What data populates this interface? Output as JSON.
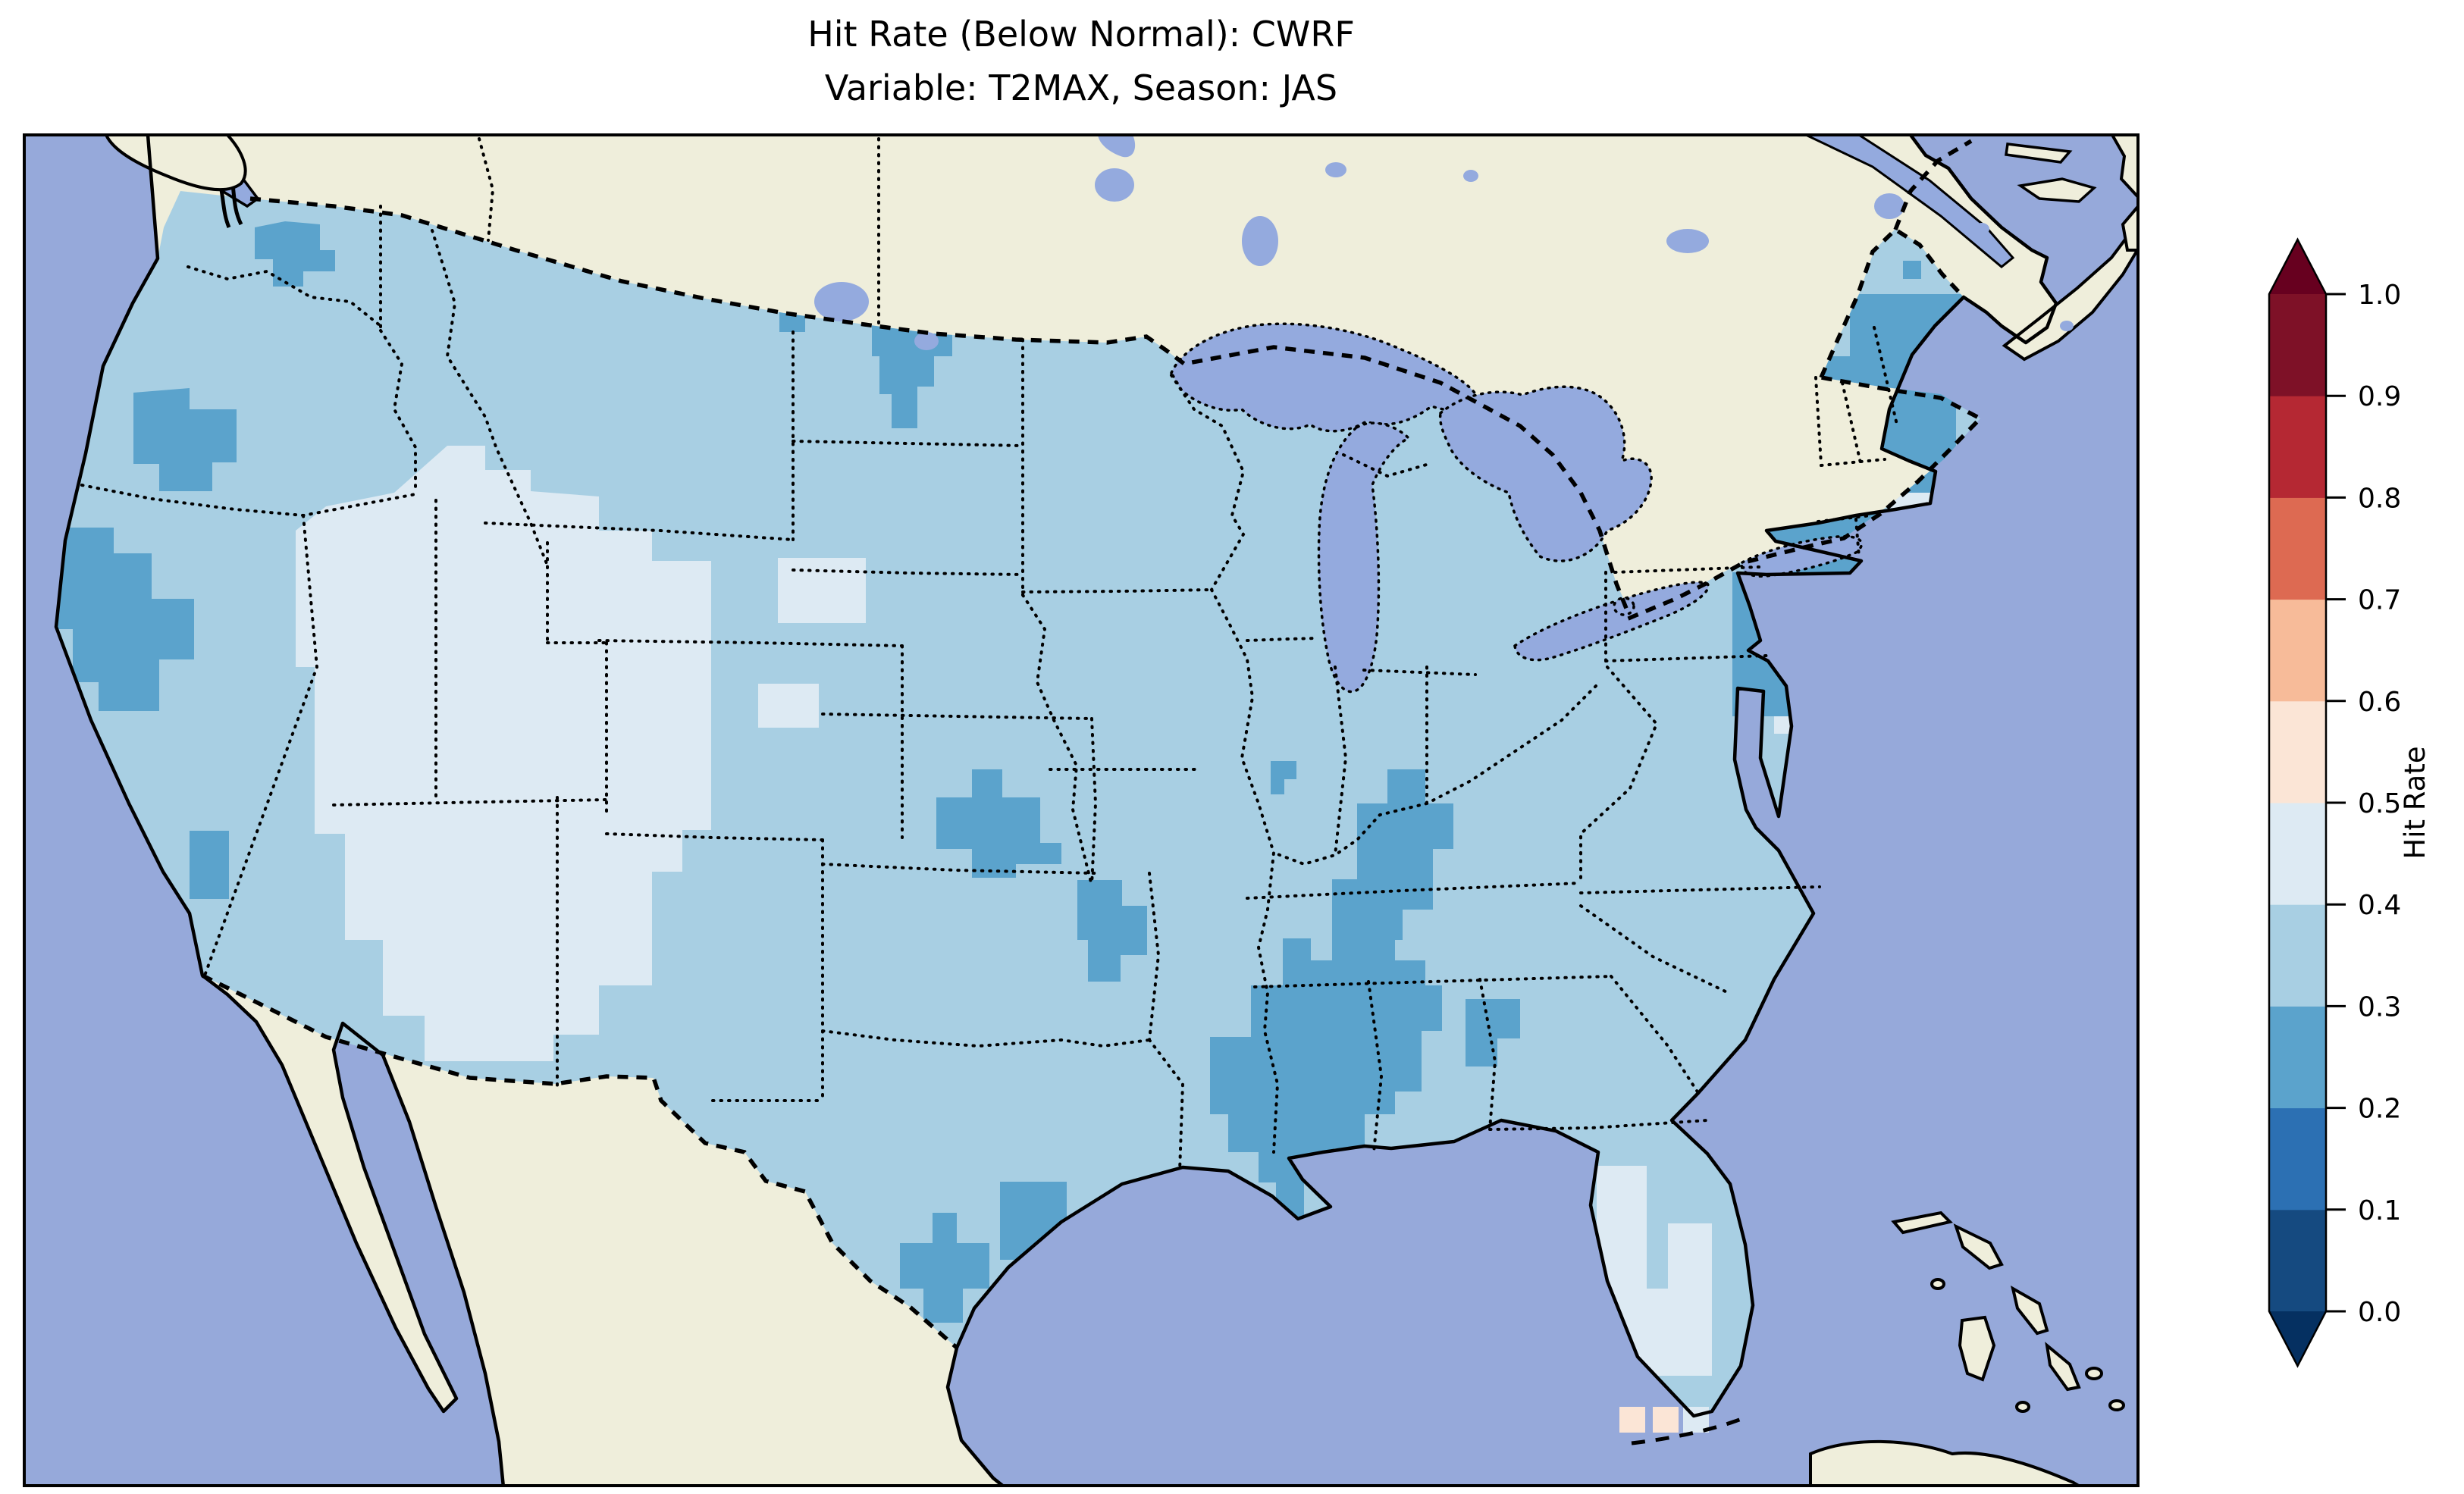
{
  "title": {
    "line1": "Hit Rate (Below Normal): CWRF",
    "line2": "Variable: T2MAX, Season: JAS"
  },
  "colorbar": {
    "label": "Hit Rate",
    "ticks": [
      "1.0",
      "0.9",
      "0.8",
      "0.7",
      "0.6",
      "0.5",
      "0.4",
      "0.3",
      "0.2",
      "0.1",
      "0.0"
    ],
    "bins": [
      {
        "range": "0.0-0.1",
        "color": "#154a80"
      },
      {
        "range": "0.1-0.2",
        "color": "#2c70b3"
      },
      {
        "range": "0.2-0.3",
        "color": "#5ba3cc"
      },
      {
        "range": "0.3-0.4",
        "color": "#a8cfe3"
      },
      {
        "range": "0.4-0.5",
        "color": "#ddeaf3"
      },
      {
        "range": "0.5-0.6",
        "color": "#fbe5d6"
      },
      {
        "range": "0.6-0.7",
        "color": "#f7bb99"
      },
      {
        "range": "0.7-0.8",
        "color": "#dd6a52"
      },
      {
        "range": "0.8-0.9",
        "color": "#b52833"
      },
      {
        "range": "0.9-1.0",
        "color": "#7e1127"
      }
    ],
    "under_color": "#053061",
    "over_color": "#67001f"
  },
  "palette": {
    "ocean": "#96a9da",
    "land": "#efeedb",
    "lake": "#94aade",
    "coast": "#000000",
    "border": "#000000",
    "bin2": "#5ba3cc",
    "bin3": "#a8cfe3",
    "bin4": "#ddeaf3",
    "bin5": "#fbe5d6",
    "frame": "#000000"
  },
  "chart_data": {
    "type": "choropleth_map",
    "title": "Hit Rate (Below Normal): CWRF",
    "subtitle": "Variable: T2MAX, Season: JAS",
    "metric": "Hit Rate (Below Normal)",
    "model": "CWRF",
    "variable": "T2MAX",
    "season": "JAS",
    "region": "Contiguous United States (gridded field)",
    "colorbar": {
      "label": "Hit Rate",
      "range": [
        0.0,
        1.0
      ],
      "tick_step": 0.1,
      "colormap": "RdBu_r, 10 discrete bins",
      "extend": "both",
      "orientation": "vertical-right"
    },
    "observed_values": [
      {
        "area": "Most of the contiguous US (default)",
        "hit_rate_bin": "0.3-0.4"
      },
      {
        "area": "Great Basin / Intermountain West (NV, UT, W CO, N AZ, NW NM, S ID)",
        "hit_rate_bin": "0.4-0.5"
      },
      {
        "area": "Western South Dakota / E Wyoming patches",
        "hit_rate_bin": "0.4-0.5"
      },
      {
        "area": "Northern California coast",
        "hit_rate_bin": "0.2-0.3"
      },
      {
        "area": "Eastern Washington",
        "hit_rate_bin": "0.2-0.3"
      },
      {
        "area": "Central Oregon",
        "hit_rate_bin": "0.2-0.3"
      },
      {
        "area": "Southern Nevada / SE California",
        "hit_rate_bin": "0.2-0.3"
      },
      {
        "area": "SE Arizona (Mexico border)",
        "hit_rate_bin": "0.2-0.3"
      },
      {
        "area": "North Dakota / NW Minnesota border",
        "hit_rate_bin": "0.2-0.3"
      },
      {
        "area": "Central Kansas",
        "hit_rate_bin": "0.2-0.3"
      },
      {
        "area": "Central Illinois (single cell)",
        "hit_rate_bin": "0.2-0.3"
      },
      {
        "area": "Southern Missouri / N Arkansas",
        "hit_rate_bin": "0.2-0.3"
      },
      {
        "area": "Kentucky / Tennessee",
        "hit_rate_bin": "0.2-0.3"
      },
      {
        "area": "Mississippi / Alabama / Louisiana (Deep South)",
        "hit_rate_bin": "0.2-0.3"
      },
      {
        "area": "Western Georgia patch",
        "hit_rate_bin": "0.2-0.3"
      },
      {
        "area": "Texas Gulf Coast patches",
        "hit_rate_bin": "0.2-0.3"
      },
      {
        "area": "Coastal New England through NJ / Delmarva",
        "hit_rate_bin": "0.2-0.3"
      },
      {
        "area": "Northern Maine",
        "hit_rate_bin": "0.3-0.4"
      },
      {
        "area": "South / SW Florida cells, Cape Cod cells",
        "hit_rate_bin": "0.4-0.5"
      },
      {
        "area": "Florida Keys (two cells)",
        "hit_rate_bin": "0.5-0.6"
      }
    ]
  }
}
